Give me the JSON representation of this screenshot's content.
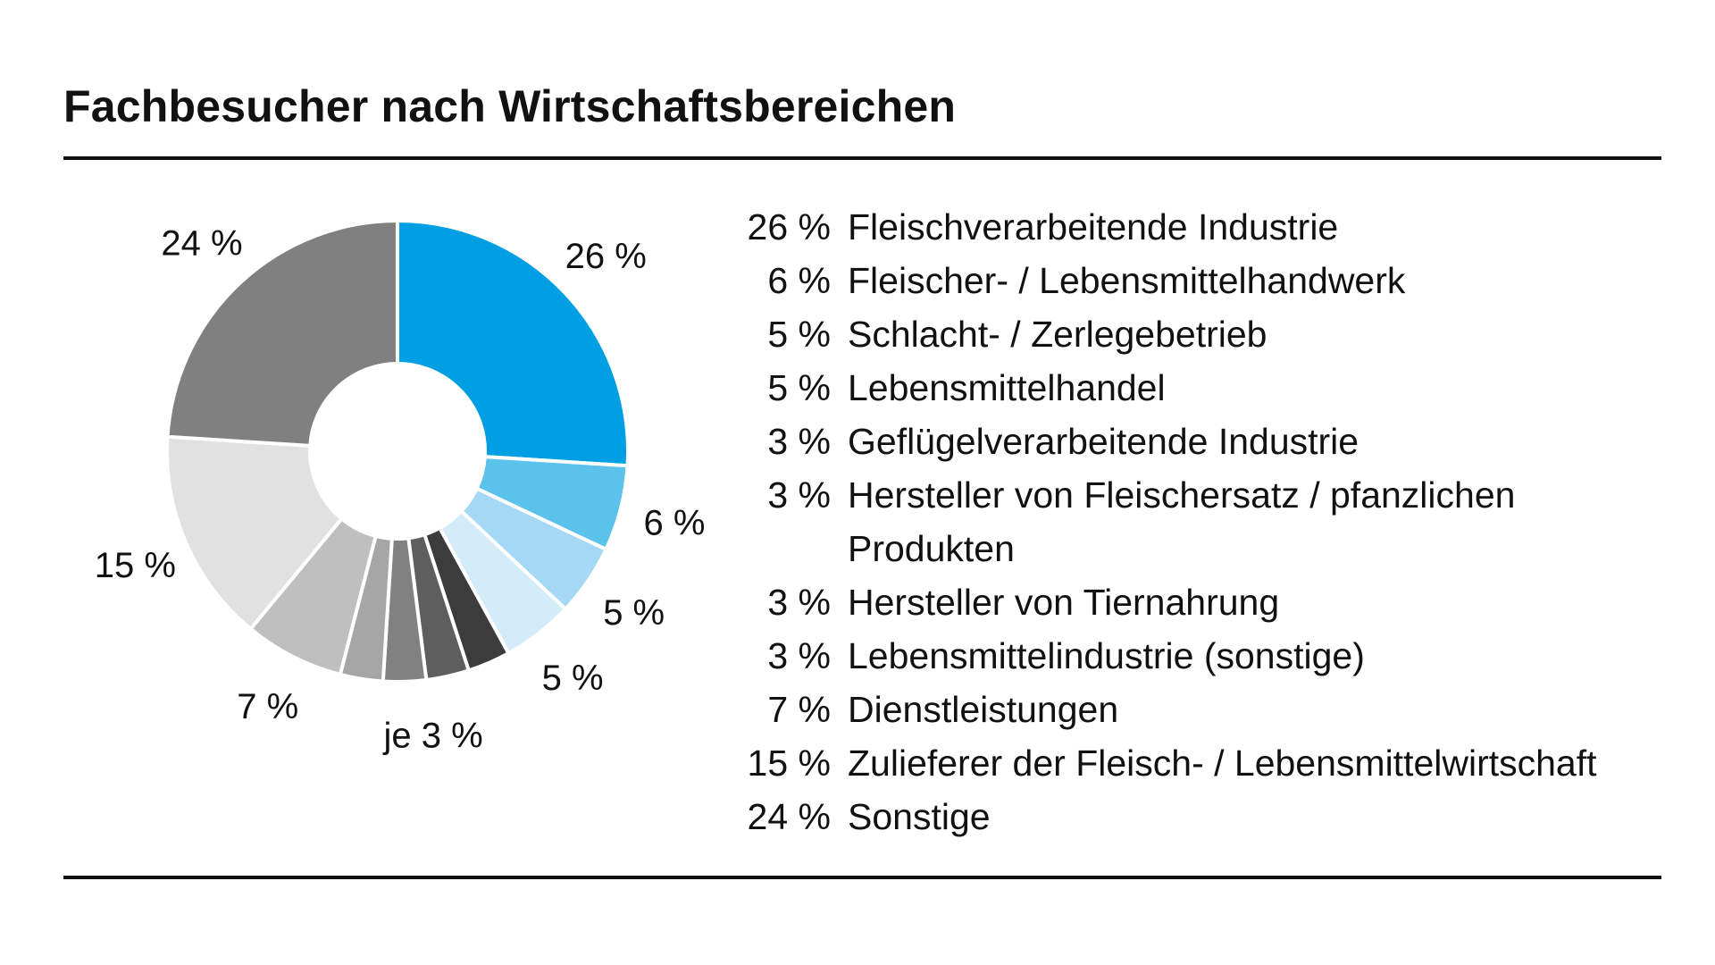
{
  "title": "Fachbesucher nach Wirtschaftsbereichen",
  "chart_data": {
    "type": "pie",
    "variant": "donut",
    "title": "Fachbesucher nach Wirtschaftsbereichen",
    "unit": "%",
    "slices": [
      {
        "name": "Fleischverarbeitende Industrie",
        "value": 26,
        "color": "#009fe3"
      },
      {
        "name": "Fleischer-/Lebensmittelhandwerk",
        "value": 6,
        "color": "#5bc2ec"
      },
      {
        "name": "Schlacht-/Zerlegebetrieb",
        "value": 5,
        "color": "#a4d8f4"
      },
      {
        "name": "Lebensmittelhandel",
        "value": 5,
        "color": "#d4ebf9"
      },
      {
        "name": "Geflügelverarbeitende Industrie",
        "value": 3,
        "color": "#3c3c3c"
      },
      {
        "name": "Hersteller von Fleischersatz/pfanzlichen Produkten",
        "value": 3,
        "color": "#5e5e5e"
      },
      {
        "name": "Hersteller von Tiernahrung",
        "value": 3,
        "color": "#818181"
      },
      {
        "name": "Lebensmittelindustrie (sonstige)",
        "value": 3,
        "color": "#a6a6a6"
      },
      {
        "name": "Dienstleistungen",
        "value": 7,
        "color": "#bfbfbf"
      },
      {
        "name": "Zulieferer der Fleisch-/Lebensmittelwirtschaft",
        "value": 15,
        "color": "#e1e1e1"
      },
      {
        "name": "Sonstige",
        "value": 24,
        "color": "#808080"
      }
    ],
    "slice_labels": [
      {
        "text": "26 %",
        "slices": [
          0
        ]
      },
      {
        "text": "6 %",
        "slices": [
          1
        ]
      },
      {
        "text": "5 %",
        "slices": [
          2
        ]
      },
      {
        "text": "5 %",
        "slices": [
          3
        ]
      },
      {
        "text": "je 3 %",
        "slices": [
          4,
          5,
          6,
          7
        ]
      },
      {
        "text": "7 %",
        "slices": [
          8
        ]
      },
      {
        "text": "15 %",
        "slices": [
          9
        ]
      },
      {
        "text": "24 %",
        "slices": [
          10
        ]
      }
    ]
  },
  "legend": [
    {
      "value": "26 %",
      "label": "Fleischverarbeitende Industrie"
    },
    {
      "value": "6 %",
      "label": "Fleischer- / Lebensmittelhandwerk"
    },
    {
      "value": "5 %",
      "label": "Schlacht- / Zerlegebetrieb"
    },
    {
      "value": "5 %",
      "label": "Lebensmittelhandel"
    },
    {
      "value": "3 %",
      "label": "Geflügelverarbeitende Industrie"
    },
    {
      "value": "3 %",
      "label": "Hersteller von Fleischersatz / pfanzlichen Produkten"
    },
    {
      "value": "3 %",
      "label": "Hersteller von Tiernahrung"
    },
    {
      "value": "3 %",
      "label": "Lebensmittelindustrie (sonstige)"
    },
    {
      "value": "7 %",
      "label": "Dienstleistungen"
    },
    {
      "value": "15 %",
      "label": "Zulieferer der Fleisch- / Lebensmittelwirtschaft"
    },
    {
      "value": "24 %",
      "label": "Sonstige"
    }
  ]
}
